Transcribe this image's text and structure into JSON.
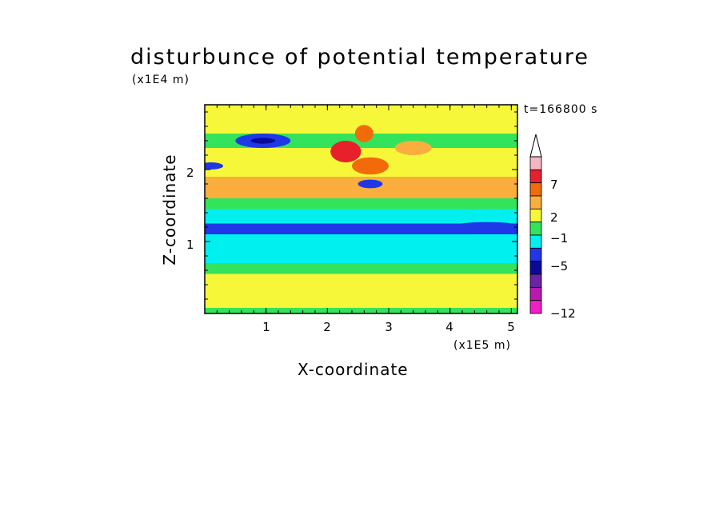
{
  "chart_data": {
    "type": "heatmap",
    "title": "disturbunce of potential temperature",
    "xlabel": "X-coordinate",
    "ylabel": "Z-coordinate",
    "x_unit": "(x1E5 m)",
    "y_unit": "(x1E4 m)",
    "annotation": "t=166800 s",
    "xlim": [
      0,
      5.1
    ],
    "ylim": [
      0,
      2.9
    ],
    "x_ticks": [
      "1",
      "2",
      "3",
      "4",
      "5"
    ],
    "y_ticks": [
      "1",
      "2"
    ],
    "colorbar": {
      "labels": [
        "7",
        "2",
        "−1",
        "−5",
        "−12"
      ],
      "colors": [
        "#ffffff",
        "#f4b6c2",
        "#e8202b",
        "#f26b0b",
        "#f9ae3e",
        "#f7f739",
        "#33e35c",
        "#00f0f0",
        "#1f37e6",
        "#0a0a9a",
        "#6b24a8",
        "#b81ab0",
        "#f21ec8"
      ]
    },
    "bands": [
      {
        "zlo": 0.0,
        "zhi": 0.08,
        "color": "#33e35c"
      },
      {
        "zlo": 0.08,
        "zhi": 0.55,
        "color": "#f7f739"
      },
      {
        "zlo": 0.55,
        "zhi": 0.7,
        "color": "#33e35c"
      },
      {
        "zlo": 0.7,
        "zhi": 1.1,
        "color": "#00f0f0"
      },
      {
        "zlo": 1.1,
        "zhi": 1.25,
        "color": "#1f37e6"
      },
      {
        "zlo": 1.25,
        "zhi": 1.45,
        "color": "#00f0f0"
      },
      {
        "zlo": 1.45,
        "zhi": 1.6,
        "color": "#33e35c"
      },
      {
        "zlo": 1.6,
        "zhi": 1.9,
        "color": "#f9ae3e"
      },
      {
        "zlo": 1.9,
        "zhi": 2.3,
        "color": "#f7f739"
      },
      {
        "zlo": 2.3,
        "zhi": 2.5,
        "color": "#33e35c"
      },
      {
        "zlo": 2.5,
        "zhi": 2.9,
        "color": "#f7f739"
      }
    ],
    "blobs": [
      {
        "x": 0.95,
        "z": 2.4,
        "rx": 0.45,
        "rz": 0.1,
        "color": "#1f37e6"
      },
      {
        "x": 0.95,
        "z": 2.4,
        "rx": 0.2,
        "rz": 0.04,
        "color": "#0a0a9a"
      },
      {
        "x": 2.3,
        "z": 2.25,
        "rx": 0.25,
        "rz": 0.15,
        "color": "#e8202b"
      },
      {
        "x": 2.7,
        "z": 2.05,
        "rx": 0.3,
        "rz": 0.12,
        "color": "#f26b0b"
      },
      {
        "x": 2.6,
        "z": 2.5,
        "rx": 0.15,
        "rz": 0.12,
        "color": "#f26b0b"
      },
      {
        "x": 3.4,
        "z": 2.3,
        "rx": 0.3,
        "rz": 0.1,
        "color": "#f9ae3e"
      },
      {
        "x": 2.7,
        "z": 1.8,
        "rx": 0.2,
        "rz": 0.06,
        "color": "#1f37e6"
      },
      {
        "x": 4.6,
        "z": 1.2,
        "rx": 0.6,
        "rz": 0.07,
        "color": "#1f37e6"
      },
      {
        "x": 0.1,
        "z": 2.05,
        "rx": 0.2,
        "rz": 0.05,
        "color": "#1f37e6"
      }
    ]
  }
}
